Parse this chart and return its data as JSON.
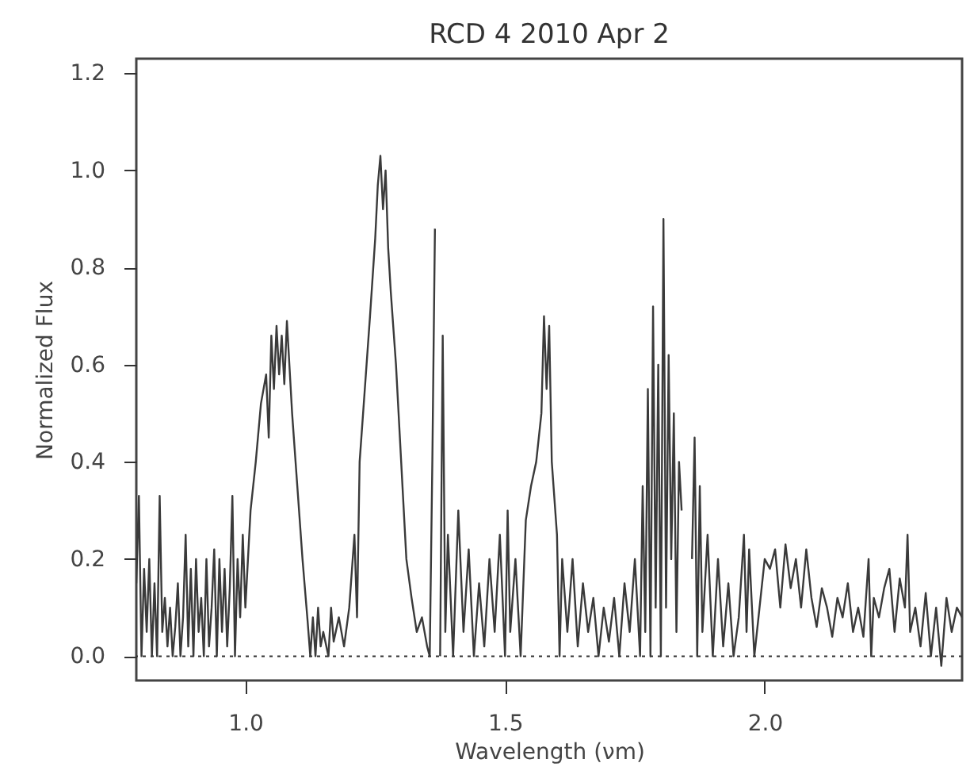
{
  "chart_data": {
    "type": "line",
    "title": "RCD 4 2010 Apr 2",
    "xlabel": "Wavelength (νm)",
    "ylabel": "Normalized Flux",
    "xlim": [
      0.79,
      2.38
    ],
    "ylim": [
      -0.05,
      1.23
    ],
    "xticks": [
      {
        "value": 1,
        "label": "1.0"
      },
      1.5,
      {
        "value": 2,
        "label": "2.0"
      }
    ],
    "yticks": [
      {
        "value": 0,
        "label": "0.0"
      },
      0.2,
      0.4,
      0.6,
      0.8,
      {
        "value": 1,
        "label": "1.0"
      },
      1.2
    ],
    "grid": false,
    "marker": "none",
    "line_style": "solid",
    "ref_lines": [
      {
        "axis": "y",
        "value": 0,
        "line_style": "dotted",
        "color": "#333333"
      }
    ],
    "x": [
      0.79,
      0.795,
      0.8,
      0.805,
      0.81,
      0.815,
      0.82,
      0.825,
      0.83,
      0.835,
      0.84,
      0.845,
      0.85,
      0.855,
      0.86,
      0.865,
      0.87,
      0.875,
      0.88,
      0.885,
      0.89,
      0.895,
      0.9,
      0.905,
      0.91,
      0.915,
      0.92,
      0.925,
      0.93,
      0.935,
      0.94,
      0.945,
      0.95,
      0.955,
      0.96,
      0.965,
      0.97,
      0.975,
      0.98,
      0.985,
      0.99,
      0.995,
      1.0,
      1.01,
      1.02,
      1.03,
      1.04,
      1.045,
      1.05,
      1.055,
      1.06,
      1.065,
      1.07,
      1.075,
      1.08,
      1.09,
      1.1,
      1.11,
      1.12,
      1.125,
      1.13,
      1.135,
      1.14,
      1.145,
      1.15,
      1.16,
      1.165,
      1.17,
      1.18,
      1.19,
      1.2,
      1.21,
      1.215,
      1.22,
      1.23,
      1.24,
      1.25,
      1.255,
      1.26,
      1.265,
      1.27,
      1.275,
      1.28,
      1.29,
      1.3,
      1.31,
      1.32,
      1.33,
      1.34,
      1.35,
      1.355,
      1.36,
      1.365,
      1.37,
      1.375,
      1.38,
      1.385,
      1.39,
      1.4,
      1.41,
      1.42,
      1.43,
      1.44,
      1.45,
      1.46,
      1.47,
      1.48,
      1.49,
      1.5,
      1.505,
      1.51,
      1.52,
      1.53,
      1.54,
      1.55,
      1.56,
      1.57,
      1.575,
      1.58,
      1.585,
      1.59,
      1.6,
      1.605,
      1.61,
      1.62,
      1.63,
      1.64,
      1.65,
      1.66,
      1.67,
      1.68,
      1.69,
      1.7,
      1.71,
      1.72,
      1.73,
      1.74,
      1.75,
      1.76,
      1.765,
      1.77,
      1.775,
      1.78,
      1.785,
      1.79,
      1.795,
      1.8,
      1.805,
      1.81,
      1.815,
      1.82,
      1.825,
      1.83,
      1.835,
      1.84,
      1.845,
      1.85,
      1.855,
      1.86,
      1.865,
      1.87,
      1.875,
      1.88,
      1.89,
      1.9,
      1.91,
      1.92,
      1.93,
      1.94,
      1.95,
      1.96,
      1.965,
      1.97,
      1.98,
      1.99,
      2.0,
      2.01,
      2.02,
      2.03,
      2.04,
      2.05,
      2.06,
      2.07,
      2.08,
      2.09,
      2.1,
      2.11,
      2.12,
      2.13,
      2.14,
      2.15,
      2.16,
      2.17,
      2.18,
      2.19,
      2.2,
      2.205,
      2.21,
      2.22,
      2.23,
      2.24,
      2.25,
      2.26,
      2.27,
      2.275,
      2.28,
      2.29,
      2.3,
      2.31,
      2.32,
      2.33,
      2.34,
      2.35,
      2.36,
      2.37,
      2.38
    ],
    "series": [
      {
        "color": "#3a3a3a",
        "values": [
          0.15,
          0.33,
          0.0,
          0.18,
          0.05,
          0.2,
          0.0,
          0.15,
          0.0,
          0.33,
          0.05,
          0.12,
          0.02,
          0.1,
          0.0,
          0.06,
          0.15,
          0.0,
          0.08,
          0.25,
          0.02,
          0.18,
          0.0,
          0.2,
          0.05,
          0.12,
          0.0,
          0.2,
          0.02,
          0.1,
          0.22,
          0.0,
          0.2,
          0.05,
          0.18,
          0.02,
          0.14,
          0.33,
          0.0,
          0.2,
          0.08,
          0.25,
          0.1,
          0.3,
          0.4,
          0.52,
          0.58,
          0.45,
          0.66,
          0.55,
          0.68,
          0.58,
          0.66,
          0.56,
          0.69,
          0.5,
          0.35,
          0.2,
          0.07,
          0.0,
          0.08,
          0.0,
          0.1,
          0.02,
          0.05,
          0.0,
          0.1,
          0.03,
          0.08,
          0.02,
          0.1,
          0.25,
          0.08,
          0.4,
          0.55,
          0.7,
          0.86,
          0.97,
          1.03,
          0.92,
          1.0,
          0.84,
          0.75,
          0.6,
          0.4,
          0.2,
          0.12,
          0.05,
          0.08,
          0.02,
          0.0,
          0.4,
          0.88,
          null,
          0.0,
          0.66,
          0.05,
          0.25,
          0.0,
          0.3,
          0.05,
          0.22,
          0.0,
          0.15,
          0.02,
          0.2,
          0.05,
          0.25,
          0.0,
          0.3,
          0.05,
          0.2,
          0.0,
          0.28,
          0.35,
          0.4,
          0.5,
          0.7,
          0.55,
          0.68,
          0.4,
          0.25,
          0.0,
          0.2,
          0.05,
          0.2,
          0.02,
          0.15,
          0.05,
          0.12,
          0.0,
          0.1,
          0.03,
          0.12,
          0.0,
          0.15,
          0.05,
          0.2,
          0.0,
          0.35,
          0.05,
          0.55,
          0.0,
          0.72,
          0.1,
          0.6,
          0.0,
          0.9,
          0.1,
          0.62,
          0.2,
          0.5,
          0.05,
          0.4,
          0.3,
          null,
          null,
          null,
          0.2,
          0.45,
          0.0,
          0.35,
          0.05,
          0.25,
          0.0,
          0.2,
          0.02,
          0.15,
          0.0,
          0.08,
          0.25,
          0.05,
          0.22,
          0.0,
          0.1,
          0.2,
          0.18,
          0.22,
          0.1,
          0.23,
          0.14,
          0.2,
          0.1,
          0.22,
          0.12,
          0.06,
          0.14,
          0.1,
          0.04,
          0.12,
          0.08,
          0.15,
          0.05,
          0.1,
          0.04,
          0.2,
          0.0,
          0.12,
          0.08,
          0.14,
          0.18,
          0.05,
          0.16,
          0.1,
          0.25,
          0.05,
          0.1,
          0.02,
          0.13,
          0.0,
          0.1,
          -0.02,
          0.12,
          0.05,
          0.1,
          0.08
        ]
      }
    ]
  }
}
